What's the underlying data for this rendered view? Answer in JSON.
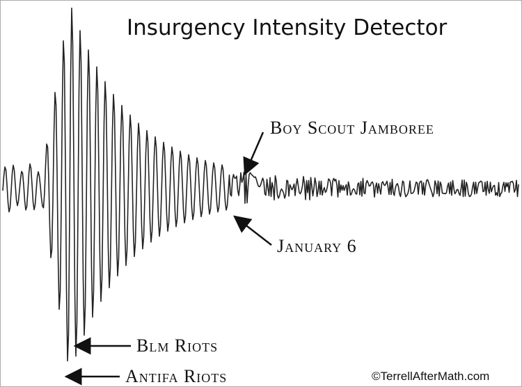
{
  "title": "Insurgency Intensity Detector",
  "annotations": [
    {
      "label": "Boy Scout Jamboree"
    },
    {
      "label": "January 6"
    },
    {
      "label": "Blm Riots"
    },
    {
      "label": "Antifa Riots"
    }
  ],
  "credit": "©TerrellAfterMath.com"
}
